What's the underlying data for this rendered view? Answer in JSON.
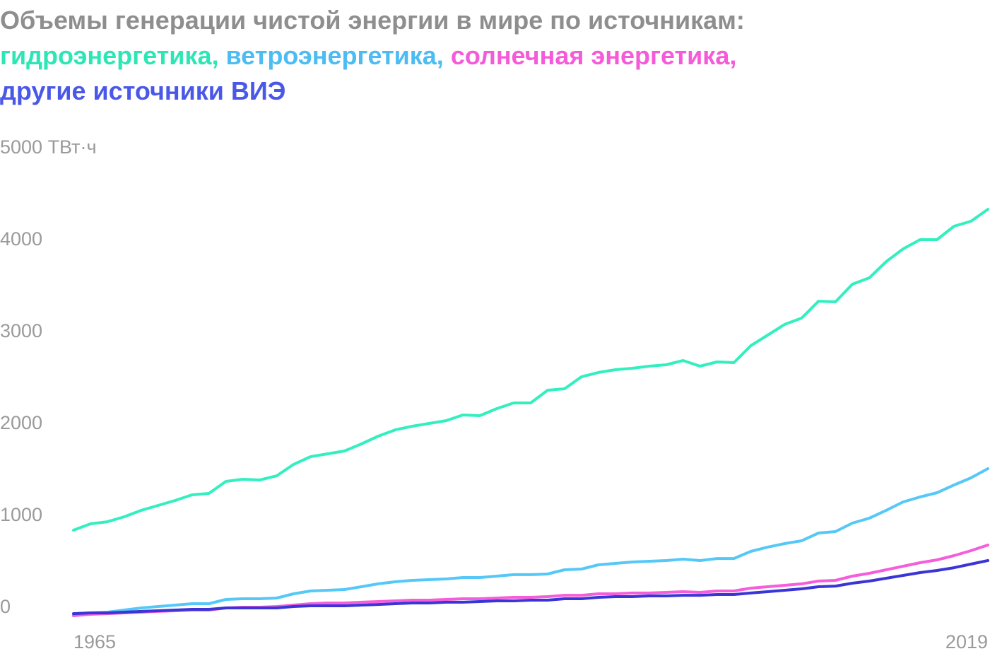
{
  "chart_data": {
    "type": "line",
    "title": "Объемы генерации чистой энергии в мире по источникам:",
    "x": [
      1965,
      1966,
      1967,
      1968,
      1969,
      1970,
      1971,
      1972,
      1973,
      1974,
      1975,
      1976,
      1977,
      1978,
      1979,
      1980,
      1981,
      1982,
      1983,
      1984,
      1985,
      1986,
      1987,
      1988,
      1989,
      1990,
      1991,
      1992,
      1993,
      1994,
      1995,
      1996,
      1997,
      1998,
      1999,
      2000,
      2001,
      2002,
      2003,
      2004,
      2005,
      2006,
      2007,
      2008,
      2009,
      2010,
      2011,
      2012,
      2013,
      2014,
      2015,
      2016,
      2017,
      2018,
      2019
    ],
    "series": [
      {
        "name": "гидроэнергетика,",
        "color": "#33efc0",
        "label_color": "#2ee6b5",
        "values": [
          846,
          915,
          938,
          992,
          1062,
          1115,
          1169,
          1231,
          1246,
          1377,
          1400,
          1392,
          1438,
          1562,
          1646,
          1677,
          1708,
          1785,
          1869,
          1938,
          1977,
          2008,
          2038,
          2100,
          2092,
          2169,
          2231,
          2231,
          2369,
          2385,
          2515,
          2562,
          2592,
          2608,
          2631,
          2646,
          2692,
          2631,
          2677,
          2669,
          2854,
          2969,
          3085,
          3154,
          3338,
          3331,
          3523,
          3592,
          3769,
          3908,
          4008,
          4008,
          4154,
          4208,
          4338
        ]
      },
      {
        "name": "ветроэнергетика,",
        "color": "#55c8f7",
        "label_color": "#4cbcf2",
        "values": [
          -62,
          -54,
          -46,
          -23,
          0,
          15,
          31,
          46,
          46,
          92,
          100,
          100,
          108,
          154,
          185,
          192,
          200,
          231,
          262,
          285,
          300,
          308,
          315,
          331,
          331,
          346,
          362,
          362,
          369,
          415,
          423,
          469,
          485,
          500,
          508,
          515,
          531,
          515,
          538,
          538,
          615,
          662,
          700,
          731,
          815,
          831,
          923,
          977,
          1062,
          1154,
          1208,
          1254,
          1338,
          1415,
          1515
        ]
      },
      {
        "name": "солнечная энергетика,",
        "color": "#f55ddb",
        "label_color": "#f55ad9",
        "values": [
          -85,
          -69,
          -62,
          -54,
          -46,
          -38,
          -31,
          -23,
          -23,
          0,
          8,
          8,
          15,
          31,
          46,
          54,
          54,
          62,
          69,
          77,
          85,
          85,
          92,
          100,
          100,
          108,
          115,
          115,
          123,
          138,
          138,
          154,
          154,
          162,
          162,
          169,
          177,
          169,
          185,
          185,
          215,
          231,
          246,
          262,
          292,
          300,
          346,
          377,
          415,
          454,
          492,
          523,
          569,
          623,
          685
        ]
      },
      {
        "name": "другие источники ВИЭ",
        "color": "#3a35d6",
        "label_color": "#4a58e8",
        "values": [
          -62,
          -54,
          -54,
          -46,
          -38,
          -31,
          -23,
          -15,
          -15,
          0,
          0,
          0,
          0,
          15,
          23,
          23,
          23,
          31,
          38,
          46,
          54,
          54,
          62,
          62,
          69,
          77,
          77,
          85,
          85,
          100,
          100,
          115,
          123,
          123,
          131,
          131,
          138,
          138,
          146,
          146,
          162,
          177,
          192,
          208,
          231,
          238,
          269,
          292,
          323,
          354,
          385,
          408,
          438,
          477,
          515
        ]
      }
    ],
    "xlim": [
      1965,
      2019
    ],
    "xticks": [
      1965,
      2019
    ],
    "ylim": [
      0,
      5000
    ],
    "yticks": [
      0,
      1000,
      2000,
      3000,
      4000,
      {
        "value": 5000,
        "label": "5000 ТВт·ч"
      }
    ],
    "grid": false
  }
}
